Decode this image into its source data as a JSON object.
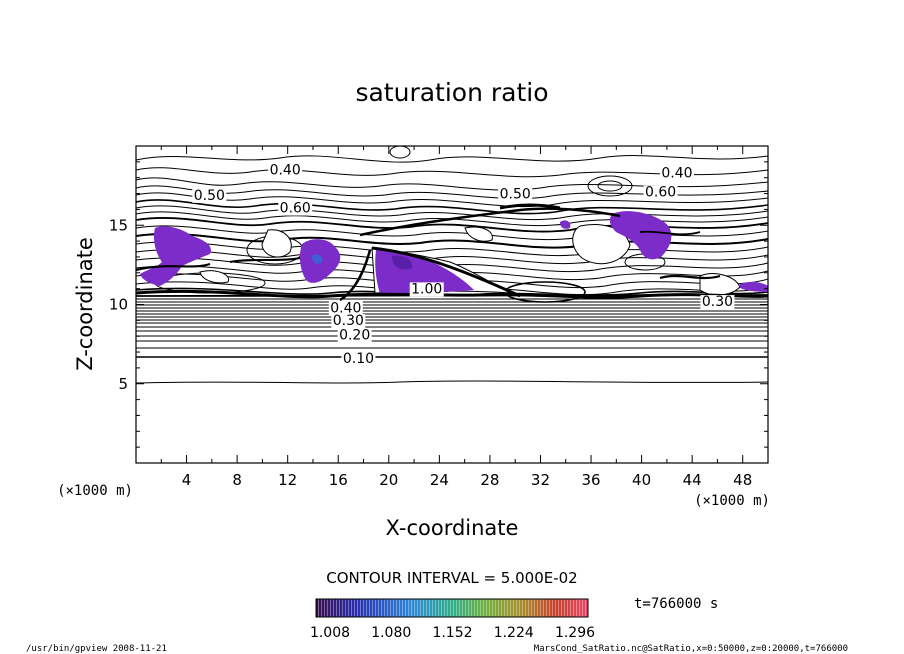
{
  "chart_data": {
    "type": "contour",
    "title": "saturation ratio",
    "xlabel": "X-coordinate",
    "ylabel": "Z-coordinate",
    "x_unit": "(×1000 m)",
    "z_unit": "(×1000 m)",
    "xlim": [
      0,
      50
    ],
    "ylim": [
      0,
      20
    ],
    "x_ticks": [
      4,
      8,
      12,
      16,
      20,
      24,
      28,
      32,
      36,
      40,
      44,
      48
    ],
    "y_ticks": [
      5,
      10,
      15
    ],
    "contour_interval_label": "CONTOUR INTERVAL = 5.000E-02",
    "contour_interval": 0.05,
    "contour_labels": [
      {
        "text": "0.40",
        "x": 11.8,
        "z": 18.2
      },
      {
        "text": "0.50",
        "x": 5.8,
        "z": 16.6
      },
      {
        "text": "0.60",
        "x": 12.6,
        "z": 15.8
      },
      {
        "text": "0.50",
        "x": 30.0,
        "z": 16.7
      },
      {
        "text": "0.40",
        "x": 42.8,
        "z": 18.0
      },
      {
        "text": "0.60",
        "x": 41.5,
        "z": 16.8
      },
      {
        "text": "0.30",
        "x": 46.0,
        "z": 9.9
      },
      {
        "text": "1.00",
        "x": 23.0,
        "z": 10.7
      },
      {
        "text": "0.40",
        "x": 16.6,
        "z": 9.5
      },
      {
        "text": "0.30",
        "x": 16.8,
        "z": 8.7
      },
      {
        "text": "0.20",
        "x": 17.3,
        "z": 7.8
      },
      {
        "text": "0.10",
        "x": 17.6,
        "z": 6.3
      }
    ],
    "shaded_regions_min_value": 1.0,
    "colorbar": {
      "ticks": [
        "1.008",
        "1.080",
        "1.152",
        "1.224",
        "1.296"
      ],
      "min": 1.008,
      "max": 1.296
    },
    "time_label": "t=766000 s"
  },
  "footer": {
    "left": "/usr/bin/gpview   2008-11-21",
    "right": "MarsCond_SatRatio.nc@SatRatio,x=0:50000,z=0:20000,t=766000"
  },
  "colors": {
    "shade": "#7b2cc9",
    "shade_dark": "#5a1fa8",
    "shade_blue": "#3f5fd6",
    "line": "#000000"
  }
}
